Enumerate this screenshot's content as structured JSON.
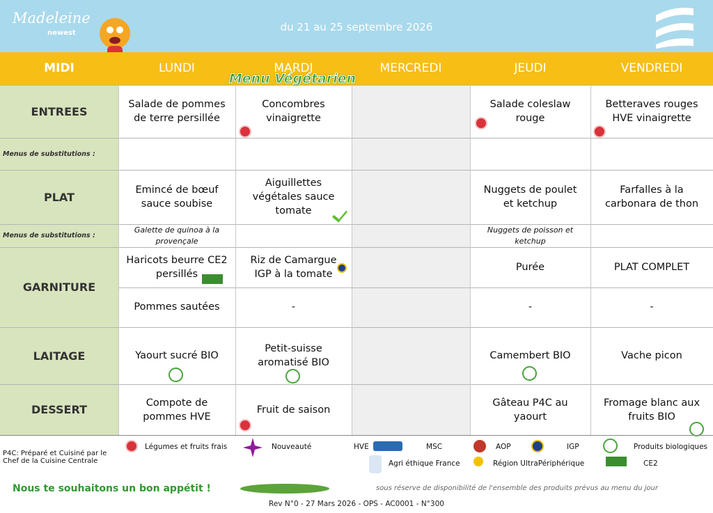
{
  "header": {
    "brand": "Madeleine",
    "brand_sub": "newest",
    "dates": "du 21 au 25 septembre 2026"
  },
  "columns": {
    "meal": "MIDI",
    "days": [
      "LUNDI",
      "MARDI",
      "MERCREDI",
      "JEUDI",
      "VENDREDI"
    ]
  },
  "banner": "Menu Végétarien",
  "rows": [
    {
      "label": "ENTREES",
      "lines": [
        [
          "Salade de pommes de terre persillée",
          "Concombres vinaigrette",
          null,
          "Salade coleslaw rouge",
          "Betteraves rouges HVE vinaigrette"
        ]
      ]
    },
    {
      "label": "Menus de substitutions :",
      "lines": [
        [
          null,
          null,
          null,
          null,
          null
        ]
      ]
    },
    {
      "label": "PLAT",
      "lines": [
        [
          "Emincé de bœuf sauce soubise",
          "Aiguillettes végétales sauce tomate",
          null,
          "Nuggets de poulet et ketchup",
          "Farfalles à la carbonara de thon"
        ]
      ]
    },
    {
      "label": "Menus de substitutions :",
      "lines": [
        [
          "Galette de quinoa à la provençale",
          null,
          null,
          "Nuggets de poisson et ketchup",
          null
        ]
      ]
    },
    {
      "label": "GARNITURE",
      "lines": [
        [
          "Haricots beurre CE2 persillés",
          "Riz de Camargue IGP à la tomate",
          null,
          "Purée",
          "PLAT COMPLET"
        ],
        [
          "Pommes sautées",
          "-",
          null,
          "-",
          "-"
        ]
      ]
    },
    {
      "label": "LAITAGE",
      "lines": [
        [
          "Yaourt sucré BIO",
          "Petit-suisse aromatisé BIO",
          null,
          "Camembert BIO",
          "Vache picon"
        ]
      ]
    },
    {
      "label": "DESSERT",
      "lines": [
        [
          "Compote de pommes HVE",
          "Fruit de saison",
          null,
          "Gâteau P4C au yaourt",
          "Fromage blanc aux fruits BIO"
        ]
      ]
    }
  ],
  "footer": {
    "p4c": "P4C:  Préparé et  Cuisiné par le Chef de la Cuisine Centrale",
    "legend": [
      "Légumes et fruits frais",
      "Nouveauté",
      "HVE",
      "MSC",
      "AOP",
      "IGP",
      "Produits biologiques",
      "Agri éthique France",
      "Région UltraPériphérique",
      "CE2"
    ],
    "wish": "Nous te souhaitons un bon appétit !",
    "disclaimer": "sous réserve de disponibilité de l'ensemble des produits prévus au menu du jour",
    "revision": "Rev N°0 - 27 Mars 2026 - OPS - AC0001 - N°300"
  }
}
